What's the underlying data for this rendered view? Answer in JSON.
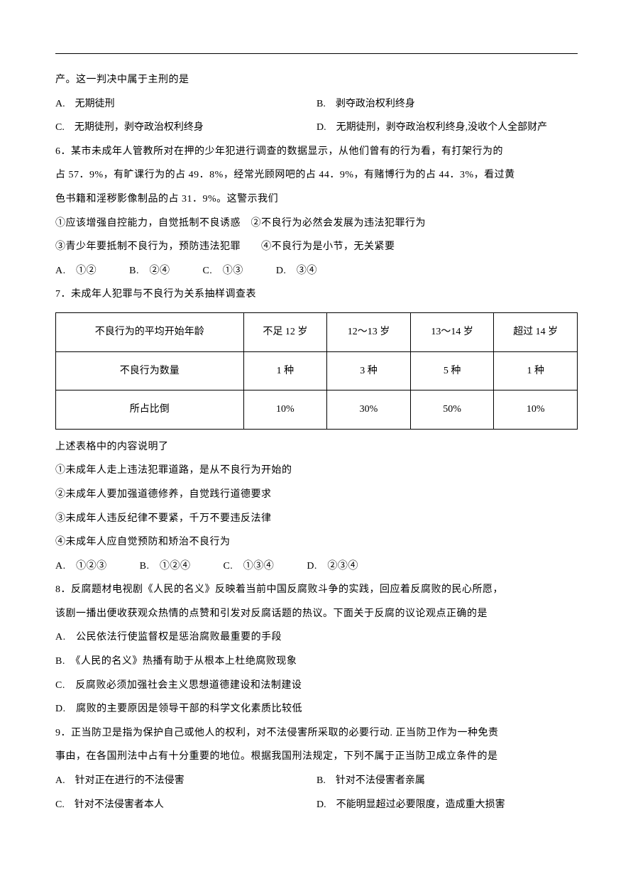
{
  "q_pre": "产。这一判决中属于主刑的是",
  "q5": {
    "a": "A.　无期徒刑",
    "b": "B.　剥夺政治权利终身",
    "c": "C.　无期徒刑，剥夺政治权利终身",
    "d": "D.　无期徒刑，剥夺政治权利终身,没收个人全部财产"
  },
  "q6": {
    "stem1": "6．某市未成年人管教所对在押的少年犯进行调查的数据显示，从他们曾有的行为看，有打架行为的",
    "stem2": "占 57．9%，有旷课行为的占 49．8%，经常光顾网吧的占 44．9%，有赌博行为的占 44．3%，看过黄",
    "stem3": "色书籍和淫秽影像制品的占 31．9%。这警示我们",
    "i1": "①应该增强自控能力，自觉抵制不良诱惑　②不良行为必然会发展为违法犯罪行为",
    "i2": "③青少年要抵制不良行为，预防违法犯罪　　④不良行为是小节，无关紧要",
    "a": "A.　①②",
    "b": "B.　②④",
    "c": "C.　①③",
    "d": "D.　③④"
  },
  "q7": {
    "stem": "7．未成年人犯罪与不良行为关系抽样调查表",
    "table": {
      "header": [
        "不良行为的平均开始年龄",
        "不足 12 岁",
        "12～13 岁",
        "13～14 岁",
        "超过 14 岁"
      ],
      "row1": [
        "不良行为数量",
        "1 种",
        "3 种",
        "5 种",
        "1 种"
      ],
      "row2": [
        "所占比倒",
        "10%",
        "30%",
        "50%",
        "10%"
      ]
    },
    "post": "上述表格中的内容说明了",
    "i1": "①未成年人走上违法犯罪道路，是从不良行为开始的",
    "i2": "②未成年人要加强道德修养，自觉践行道德要求",
    "i3": "③未成年人违反纪律不要紧，千万不要违反法律",
    "i4": "④未成年人应自觉预防和矫治不良行为",
    "a": "A.　①②③",
    "b": "B.　①②④",
    "c": "C.　①③④",
    "d": "D.　②③④"
  },
  "q8": {
    "stem1": "8．反腐题材电视剧《人民的名义》反映着当前中国反腐败斗争的实践，回应着反腐败的民心所愿，",
    "stem2": "该剧一播出便收获观众热情的点赞和引发对反腐话题的热议。下面关于反腐的议论观点正确的是",
    "a": "A.　公民依法行使监督权是惩治腐败最重要的手段",
    "b": "B.　《人民的名义》热播有助于从根本上杜绝腐败现象",
    "c": "C.　反腐败必须加强社会主义思想道德建设和法制建设",
    "d": "D.　腐败的主要原因是领导干部的科学文化素质比较低"
  },
  "q9": {
    "stem1": "9．正当防卫是指为保护自己或他人的权利，对不法侵害所采取的必要行动. 正当防卫作为一种免责",
    "stem2": "事由，在各国刑法中占有十分重要的地位。根据我国刑法规定，下列不属于正当防卫成立条件的是",
    "a": "A.　针对正在进行的不法侵害",
    "b": "B.　针对不法侵害者亲属",
    "c": "C.　针对不法侵害者本人",
    "d": "D.　不能明显超过必要限度，造成重大损害"
  }
}
